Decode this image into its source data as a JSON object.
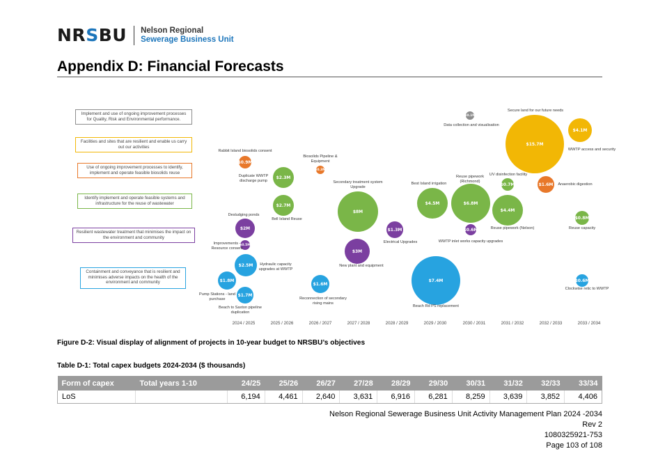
{
  "header": {
    "logo_prefix": "NR",
    "logo_s": "S",
    "logo_suffix": "BU",
    "org_line1": "Nelson Regional",
    "org_line2": "Sewerage Business Unit"
  },
  "page_title": "Appendix D: Financial Forecasts",
  "figure": {
    "objectives": [
      {
        "text": "Implement and use of ongoing improvement processes for Quality, Risk and Environmental performance.",
        "color": "#8c8c8c"
      },
      {
        "text": "Facilities and sites that are resilient and enable us carry out our activities",
        "color": "#f2b705"
      },
      {
        "text": "Use of ongoing improvement processes to identify, implement and operate feasible biosolids reuse",
        "color": "#e8782a"
      },
      {
        "text": "Identify implement and operate feasible systems and infrastructure for the reuse of wastewater",
        "color": "#7ab648"
      },
      {
        "text": "Resilient wastewater treatment that minimises the impact on the environment and community",
        "color": "#7b3fa0"
      },
      {
        "text": "Containment and conveyance that is resilient and minimises adverse impacts on the health of the environment and community",
        "color": "#27a3e0"
      }
    ],
    "years": [
      "2024 / 2025",
      "2025 / 2026",
      "2026 / 2027",
      "2027 / 2028",
      "2028 / 2029",
      "2029 / 2030",
      "2030 / 2031",
      "2031 / 2032",
      "2032 / 2033",
      "2033 / 2034"
    ],
    "projects": [
      {
        "value": "$0.9M",
        "label": "Rabbit Island biosolids consent",
        "color": "#e8782a"
      },
      {
        "value": "$2.3M",
        "label": "Duplicate WWTP discharge pump",
        "color": "#7ab648"
      },
      {
        "value": "$0.3M",
        "label": "Biosolids Pipeline & Equipment",
        "color": "#e8782a"
      },
      {
        "value": "$2.7M",
        "label": "Bell Island Reuse",
        "color": "#7ab648"
      },
      {
        "value": "$8M",
        "label": "Secondary treatment system Upgrade",
        "color": "#7ab648"
      },
      {
        "value": "$2M",
        "label": "Desludging ponds",
        "color": "#7b3fa0"
      },
      {
        "value": "$0.5M",
        "label": "Improvements - Resource consent",
        "color": "#7b3fa0"
      },
      {
        "value": "$2.5M",
        "label": "Hydraulic capacity upgrades at WWTP",
        "color": "#27a3e0"
      },
      {
        "value": "$1.8M",
        "label": "Pump Stations - land purchase",
        "color": "#27a3e0"
      },
      {
        "value": "$1.7M",
        "label": "Beach to Saxton pipeline duplication",
        "color": "#27a3e0"
      },
      {
        "value": "$1.6M",
        "label": "Reconnection of secondary rising mains",
        "color": "#27a3e0"
      },
      {
        "value": "$3M",
        "label": "New plant and equipment",
        "color": "#7b3fa0"
      },
      {
        "value": "$1.3M",
        "label": "Electrical Upgrades",
        "color": "#7b3fa0"
      },
      {
        "value": "$4.5M",
        "label": "Best Island irrigation",
        "color": "#7ab648"
      },
      {
        "value": "$7.4M",
        "label": "Beach Rd PS replacement",
        "color": "#27a3e0"
      },
      {
        "value": "$0.1M",
        "label": "Data collection and visualisation",
        "color": "#8c8c8c"
      },
      {
        "value": "$6.8M",
        "label": "Reuse pipework (Richmond)",
        "color": "#7ab648"
      },
      {
        "value": "$0.6M",
        "label": "WWTP inlet works capacity upgrades",
        "color": "#7b3fa0"
      },
      {
        "value": "$0.7M",
        "label": "UV disinfection facility",
        "color": "#7ab648"
      },
      {
        "value": "$4.4M",
        "label": "Reuse pipework (Nelson)",
        "color": "#7ab648"
      },
      {
        "value": "$15.7M",
        "label": "Secure land for our future needs",
        "color": "#f2b705"
      },
      {
        "value": "$1.6M",
        "label": "Anaerobic digestion",
        "color": "#e8782a"
      },
      {
        "value": "$4.1M",
        "label": "WWTP access and security",
        "color": "#f2b705"
      },
      {
        "value": "$0.8M",
        "label": "Reuse capacity",
        "color": "#7ab648"
      },
      {
        "value": "$0.6M",
        "label": "Clockwise retic to WWTP",
        "color": "#27a3e0"
      }
    ]
  },
  "figure_caption": "Figure D-2:  Visual display of alignment of projects in 10-year budget to NRSBU’s objectives",
  "table_title": "Table D-1: Total capex budgets 2024-2034 ($ thousands)",
  "capex_table": {
    "headers": [
      "Form of capex",
      "Total years 1-10",
      "24/25",
      "25/26",
      "26/27",
      "27/28",
      "28/29",
      "29/30",
      "30/31",
      "31/32",
      "32/33",
      "33/34"
    ],
    "rows": [
      [
        "LoS",
        "",
        "6,194",
        "4,461",
        "2,640",
        "3,631",
        "6,916",
        "6,281",
        "8,259",
        "3,639",
        "3,852",
        "4,406"
      ]
    ]
  },
  "footer": {
    "line1": "Nelson Regional Sewerage Business Unit Activity Management Plan 2024 -2034",
    "line2": "Rev 2",
    "line3": "1080325921-753",
    "line4": "Page 103 of 108"
  }
}
